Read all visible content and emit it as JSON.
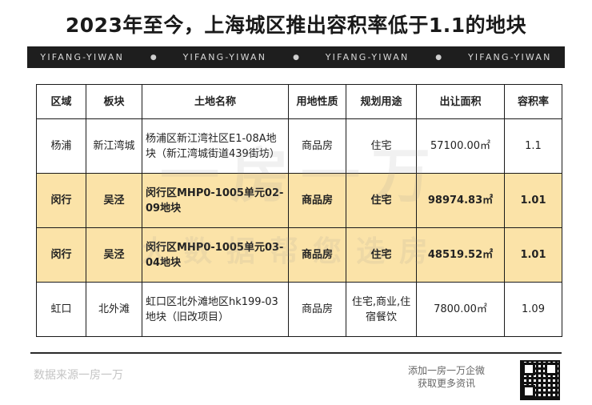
{
  "title": "2023年至今，上海城区推出容积率低于1.1的地块",
  "banner": {
    "brand": "YIFANG-YIWAN",
    "separator": "●"
  },
  "table": {
    "headers": [
      "区域",
      "板块",
      "土地名称",
      "用地性质",
      "规划用途",
      "出让面积",
      "容积率"
    ],
    "rows": [
      {
        "district": "杨浦",
        "area": "新江湾城",
        "name": "杨浦区新江湾社区E1-08A地块（新江湾城街道439街坊）",
        "land_type": "商品房",
        "use": "住宅",
        "size": "57100.00㎡",
        "far": "1.1",
        "highlight": false
      },
      {
        "district": "闵行",
        "area": "吴泾",
        "name": "闵行区MHP0-1005单元02-09地块",
        "land_type": "商品房",
        "use": "住宅",
        "size": "98974.83㎡",
        "far": "1.01",
        "highlight": true
      },
      {
        "district": "闵行",
        "area": "吴泾",
        "name": "闵行区MHP0-1005单元03-04地块",
        "land_type": "商品房",
        "use": "住宅",
        "size": "48519.52㎡",
        "far": "1.01",
        "highlight": true
      },
      {
        "district": "虹口",
        "area": "北外滩",
        "name": "虹口区北外滩地区hk199-03地块（旧改项目）",
        "land_type": "商品房",
        "use": "住宅,商业,住宿餐饮",
        "size": "7800.00㎡",
        "far": "1.09",
        "highlight": false
      }
    ]
  },
  "watermark": {
    "line1": "一房一万",
    "line2": "大数据帮您选房"
  },
  "footer": {
    "source": "数据来源一房一万",
    "follow_line1": "添加一房一万企微",
    "follow_line2": "获取更多资讯",
    "qr_icon": "qr-code-icon"
  }
}
